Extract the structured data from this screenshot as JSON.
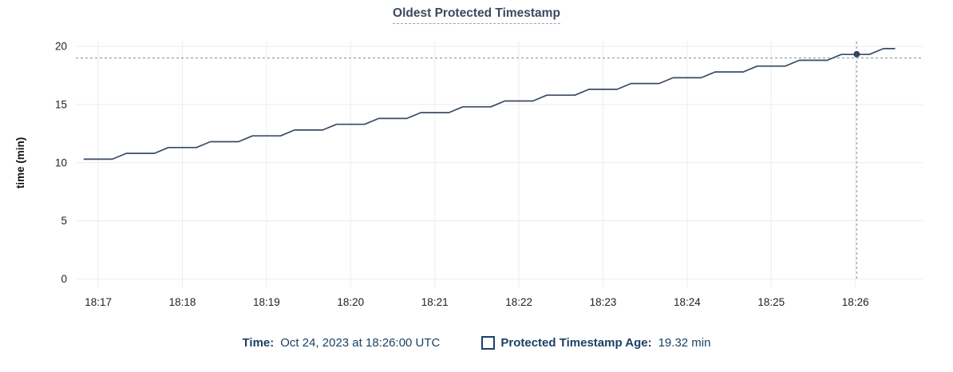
{
  "title": "Oldest Protected Timestamp",
  "legend": {
    "time_label": "Time:",
    "time_value": "Oct 24, 2023 at 18:26:00 UTC",
    "series_label": "Protected Timestamp Age:",
    "series_value": "19.32 min"
  },
  "colors": {
    "line": "#3b4a63",
    "point": "#36455e",
    "crosshair": "#93a5b3",
    "grid": "#ececec",
    "axis_text": "#202327",
    "axis_title_text": "#111111",
    "title_text": "#3c4a5e",
    "legend_text": "#1d4064"
  },
  "chart_data": {
    "type": "line",
    "title": "Oldest Protected Timestamp",
    "xlabel": "",
    "ylabel": "time (min)",
    "ylim": [
      0,
      20
    ],
    "y_ticks": [
      0,
      5,
      10,
      15,
      20
    ],
    "x_domain": [
      "18:16:44",
      "18:26:48"
    ],
    "x_ticks": [
      "18:17",
      "18:18",
      "18:19",
      "18:20",
      "18:21",
      "18:22",
      "18:23",
      "18:24",
      "18:25",
      "18:26"
    ],
    "grid": true,
    "legend_position": "bottom",
    "hover": {
      "crosshair_time": "18:26:01",
      "point_value": 19.32,
      "h_line_value": 19.0,
      "tooltip_time": "Oct 24, 2023 at 18:26:00 UTC",
      "tooltip_value": "19.32 min"
    },
    "series": [
      {
        "name": "Protected Timestamp Age",
        "unit": "min",
        "points": [
          {
            "t": "18:16:50",
            "v": 10.3
          },
          {
            "t": "18:17:10",
            "v": 10.3
          },
          {
            "t": "18:17:20",
            "v": 10.8
          },
          {
            "t": "18:17:40",
            "v": 10.8
          },
          {
            "t": "18:17:50",
            "v": 11.3
          },
          {
            "t": "18:18:10",
            "v": 11.3
          },
          {
            "t": "18:18:20",
            "v": 11.8
          },
          {
            "t": "18:18:40",
            "v": 11.8
          },
          {
            "t": "18:18:50",
            "v": 12.3
          },
          {
            "t": "18:19:10",
            "v": 12.3
          },
          {
            "t": "18:19:20",
            "v": 12.8
          },
          {
            "t": "18:19:40",
            "v": 12.8
          },
          {
            "t": "18:19:50",
            "v": 13.3
          },
          {
            "t": "18:20:10",
            "v": 13.3
          },
          {
            "t": "18:20:20",
            "v": 13.8
          },
          {
            "t": "18:20:40",
            "v": 13.8
          },
          {
            "t": "18:20:50",
            "v": 14.3
          },
          {
            "t": "18:21:10",
            "v": 14.3
          },
          {
            "t": "18:21:20",
            "v": 14.8
          },
          {
            "t": "18:21:40",
            "v": 14.8
          },
          {
            "t": "18:21:50",
            "v": 15.3
          },
          {
            "t": "18:22:10",
            "v": 15.3
          },
          {
            "t": "18:22:20",
            "v": 15.8
          },
          {
            "t": "18:22:40",
            "v": 15.8
          },
          {
            "t": "18:22:50",
            "v": 16.3
          },
          {
            "t": "18:23:10",
            "v": 16.3
          },
          {
            "t": "18:23:20",
            "v": 16.8
          },
          {
            "t": "18:23:40",
            "v": 16.8
          },
          {
            "t": "18:23:50",
            "v": 17.3
          },
          {
            "t": "18:24:10",
            "v": 17.3
          },
          {
            "t": "18:24:20",
            "v": 17.8
          },
          {
            "t": "18:24:40",
            "v": 17.8
          },
          {
            "t": "18:24:50",
            "v": 18.3
          },
          {
            "t": "18:25:10",
            "v": 18.3
          },
          {
            "t": "18:25:20",
            "v": 18.8
          },
          {
            "t": "18:25:40",
            "v": 18.8
          },
          {
            "t": "18:25:50",
            "v": 19.3
          },
          {
            "t": "18:26:10",
            "v": 19.3
          },
          {
            "t": "18:26:20",
            "v": 19.8
          },
          {
            "t": "18:26:28",
            "v": 19.8
          }
        ]
      }
    ]
  }
}
